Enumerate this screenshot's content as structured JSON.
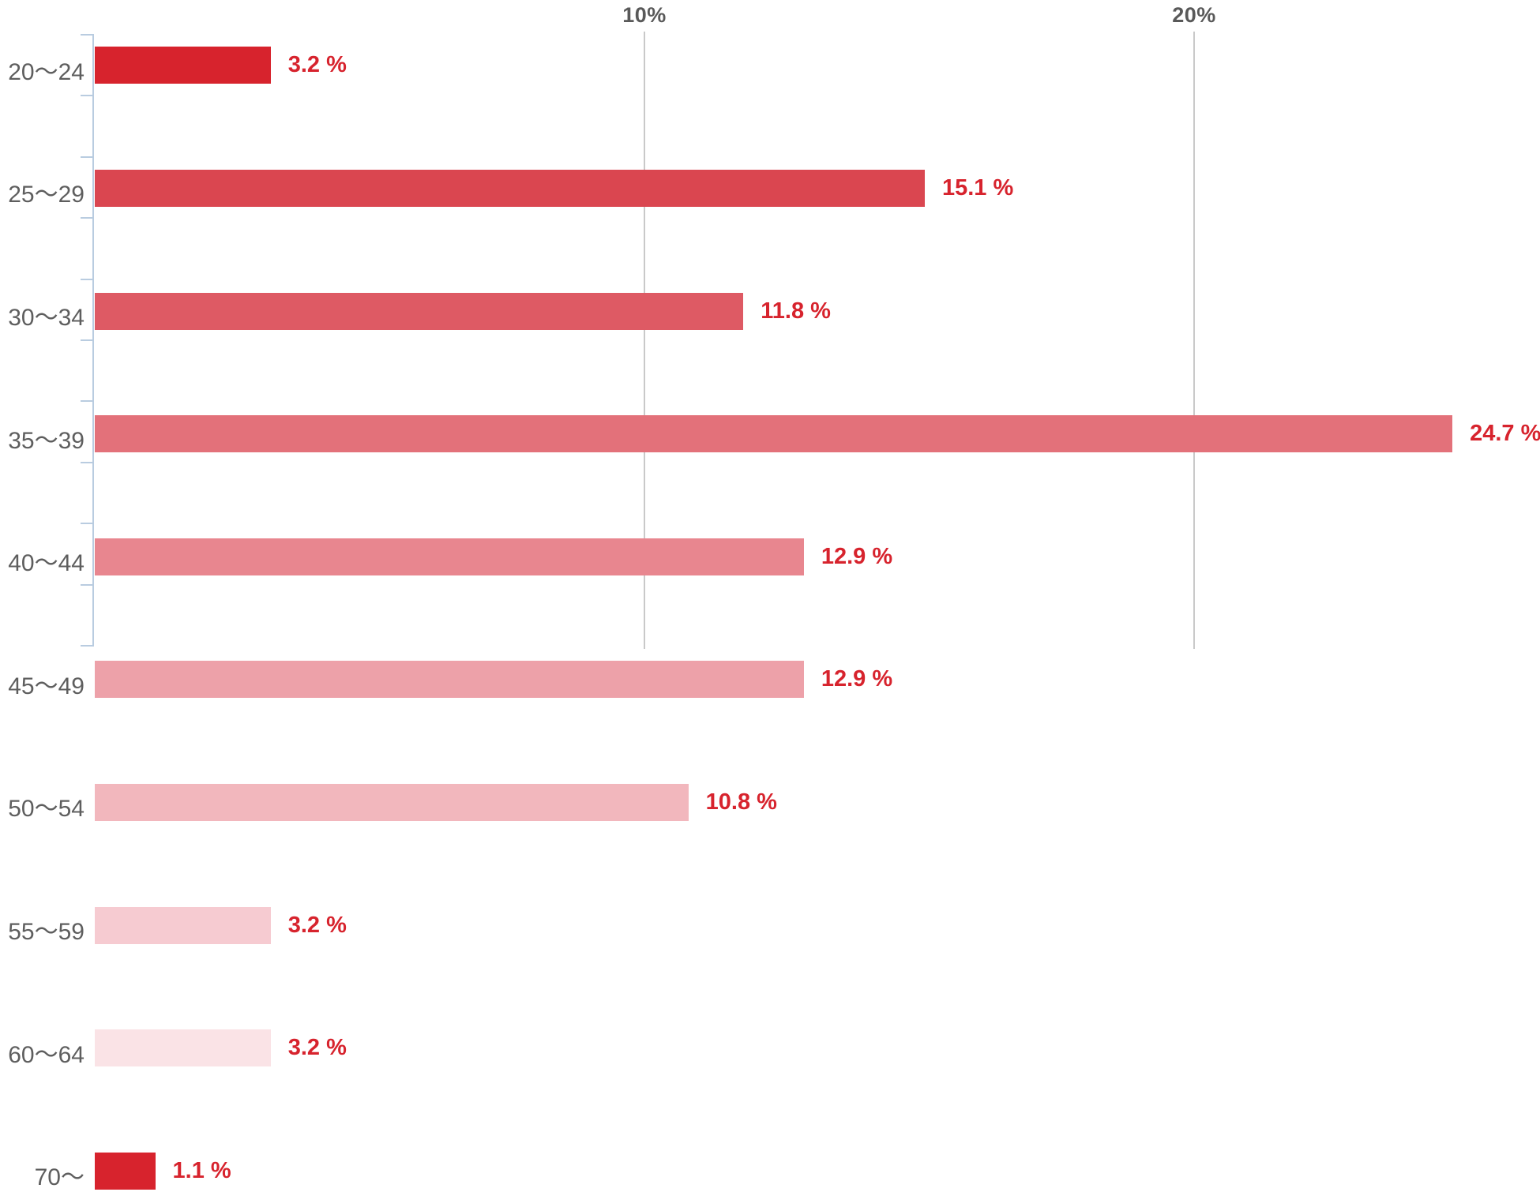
{
  "chart_data": {
    "type": "bar",
    "orientation": "horizontal",
    "title": "",
    "xlabel": "",
    "ylabel": "",
    "categories": [
      "20〜24",
      "25〜29",
      "30〜34",
      "35〜39",
      "40〜44",
      "45〜49",
      "50〜54",
      "55〜59",
      "60〜64",
      "70〜"
    ],
    "values": [
      3.2,
      15.1,
      11.8,
      24.7,
      12.9,
      12.9,
      10.8,
      3.2,
      3.2,
      1.1
    ],
    "value_labels": [
      "3.2 %",
      "15.1 %",
      "11.8 %",
      "24.7 %",
      "12.9 %",
      "12.9 %",
      "10.8 %",
      "3.2 %",
      "3.2 %",
      "1.1 %"
    ],
    "bar_colors": [
      "#d7232d",
      "#da4650",
      "#de5a64",
      "#e3717a",
      "#e8868f",
      "#eda1a9",
      "#f2b7bd",
      "#f6cbd1",
      "#fae3e6",
      "#d7232d"
    ],
    "x_axis": {
      "tick_labels": [
        "10%",
        "20%"
      ],
      "tick_values": [
        10,
        20
      ],
      "range": [
        0,
        26.3
      ]
    },
    "grid": true,
    "legend": false
  },
  "style": {
    "background": "#ffffff",
    "value_label_color": "#d7232d",
    "category_label_color": "#5e5e5e",
    "axis_tick_label_color": "#595959",
    "gridline_color": "#c9c9c9",
    "y_axis_color": "#b9cce0"
  }
}
